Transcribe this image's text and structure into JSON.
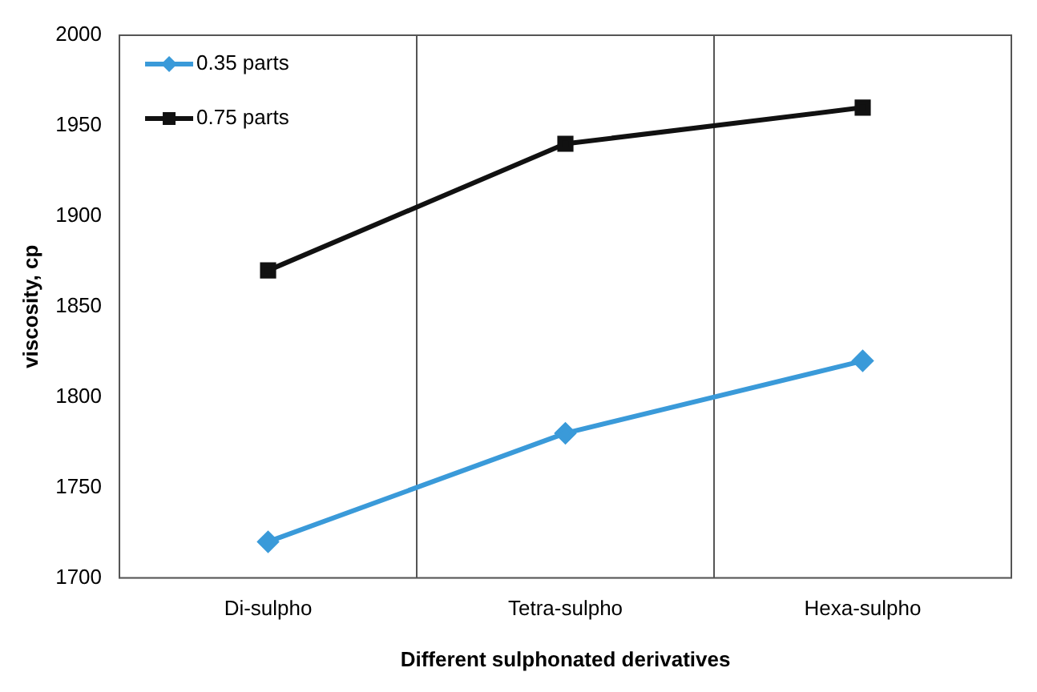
{
  "chart_data": {
    "type": "line",
    "xlabel": "Different sulphonated derivatives",
    "ylabel": "viscosity, cp",
    "categories": [
      "Di-sulpho",
      "Tetra-sulpho",
      "Hexa-sulpho"
    ],
    "series": [
      {
        "name": "0.35 parts",
        "color": "#3a9ad9",
        "marker": "diamond",
        "values": [
          1720,
          1780,
          1820
        ]
      },
      {
        "name": "0.75 parts",
        "color": "#111111",
        "marker": "square",
        "values": [
          1870,
          1940,
          1960
        ]
      }
    ],
    "ylim": [
      1700,
      2000
    ],
    "yticks": [
      1700,
      1750,
      1800,
      1850,
      1900,
      1950,
      2000
    ],
    "grid": "x",
    "legend": "top left"
  }
}
